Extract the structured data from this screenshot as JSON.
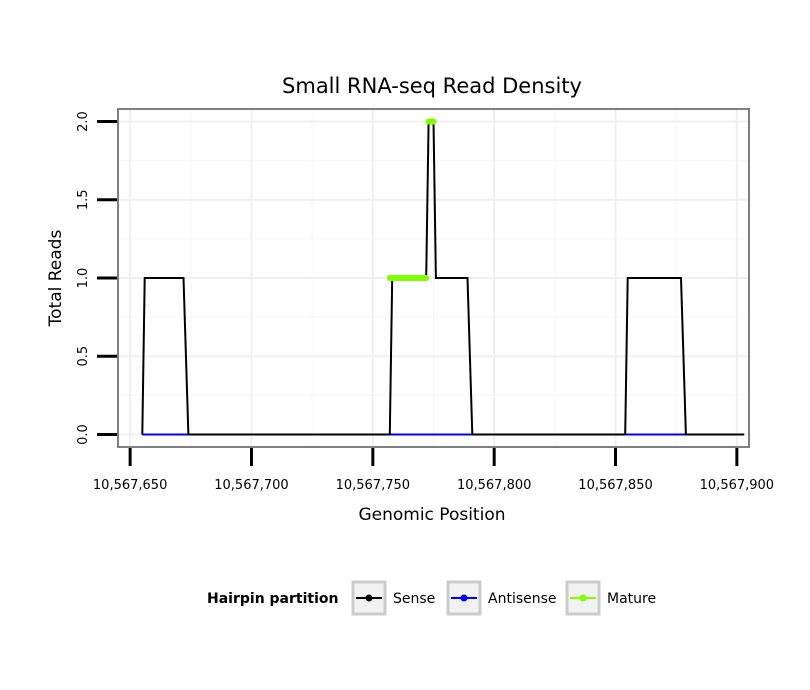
{
  "chart_data": {
    "type": "line",
    "title": "Small RNA-seq Read Density",
    "xlabel": "Genomic Position",
    "ylabel": "Total Reads",
    "xlim": [
      10567645,
      10567905
    ],
    "ylim": [
      -0.08,
      2.08
    ],
    "x_ticks": [
      10567650,
      10567700,
      10567750,
      10567800,
      10567850,
      10567900
    ],
    "x_tick_labels": [
      "10,567,650",
      "10,567,700",
      "10,567,750",
      "10,567,800",
      "10,567,850",
      "10,567,900"
    ],
    "y_ticks": [
      0,
      0.5,
      1,
      1.5,
      2
    ],
    "y_tick_labels": [
      "0.0",
      "0.5",
      "1.0",
      "1.5",
      "2.0"
    ],
    "grid": true,
    "legend": {
      "title": "Hairpin partition",
      "position": "bottom",
      "entries": [
        "Sense",
        "Antisense",
        "Mature"
      ]
    },
    "series": [
      {
        "name": "Sense",
        "color": "#000000",
        "x": [
          10567655,
          10567656,
          10567672,
          10567674,
          10567757,
          10567758,
          10567772,
          10567773,
          10567775,
          10567776,
          10567789,
          10567791,
          10567854,
          10567855,
          10567877,
          10567879,
          10567903
        ],
        "values": [
          0,
          1,
          1,
          0,
          0,
          1,
          1,
          2,
          2,
          1,
          1,
          0,
          0,
          1,
          1,
          0,
          0
        ]
      },
      {
        "name": "Antisense",
        "color": "#0000ff",
        "x": [
          10567655,
          10567903
        ],
        "values": [
          0,
          0
        ]
      },
      {
        "name": "Mature",
        "color": "#7fff00",
        "segments": [
          {
            "x": [
              10567757,
              10567772
            ],
            "values": [
              1,
              1
            ]
          },
          {
            "x": [
              10567773,
              10567775
            ],
            "values": [
              2,
              2
            ]
          }
        ]
      }
    ]
  }
}
